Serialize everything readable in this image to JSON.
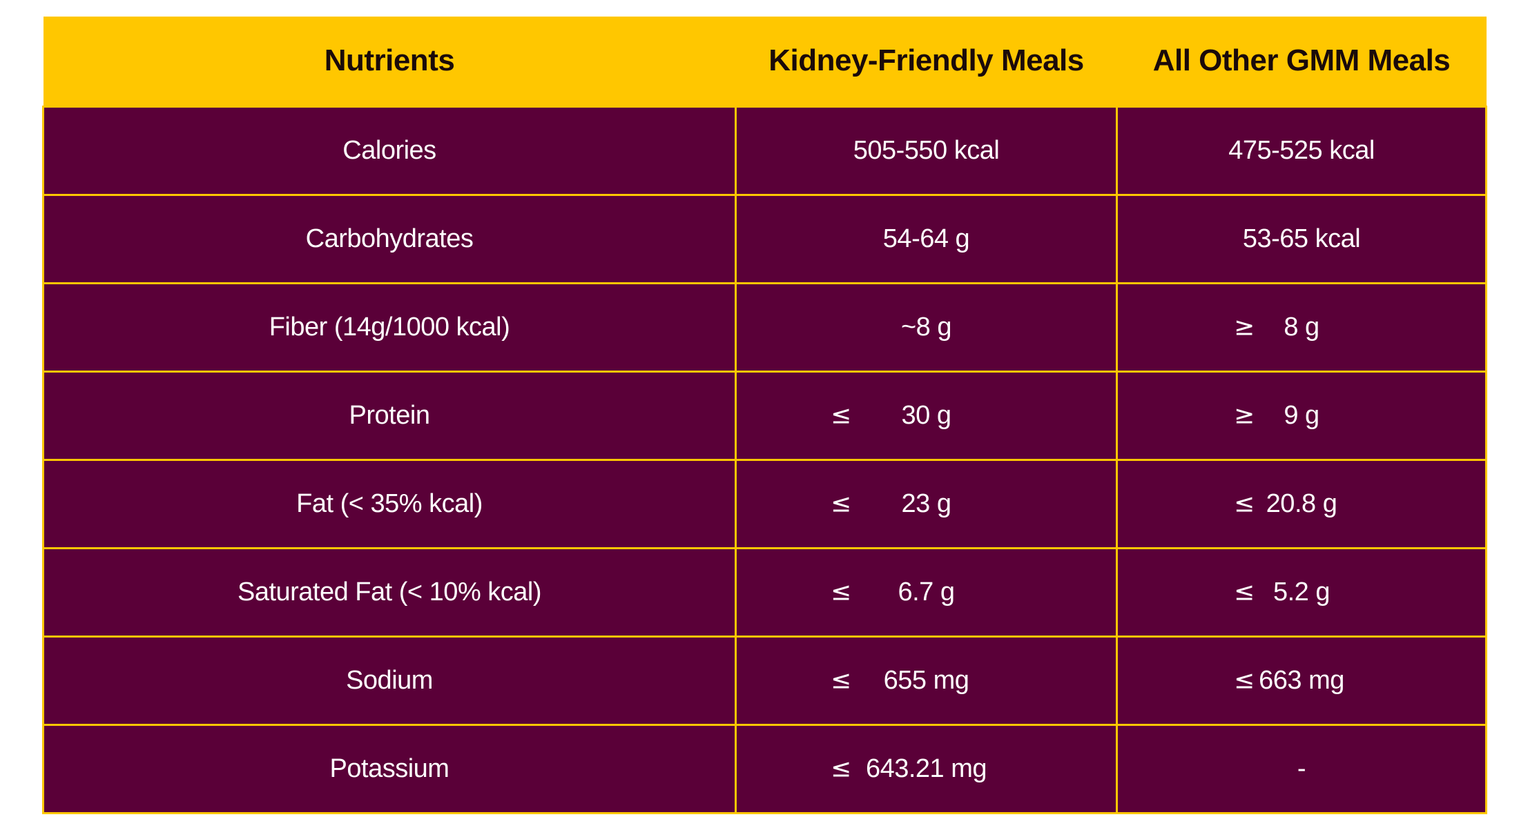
{
  "headers": {
    "col1": "Nutrients",
    "col2": "Kidney-Friendly Meals",
    "col3": "All Other GMM Meals"
  },
  "rows": [
    {
      "nutrient": "Calories",
      "kf_sym": "",
      "kf_val": "505-550 kcal",
      "other_sym": "",
      "other_val": "475-525 kcal"
    },
    {
      "nutrient": "Carbohydrates",
      "kf_sym": "",
      "kf_val": "54-64 g",
      "other_sym": "",
      "other_val": "53-65 kcal"
    },
    {
      "nutrient": "Fiber (14g/1000 kcal)",
      "kf_sym": "",
      "kf_val": "~8 g",
      "other_sym": "≥",
      "other_val": "8 g"
    },
    {
      "nutrient": "Protein",
      "kf_sym": "≤",
      "kf_val": "30 g",
      "other_sym": "≥",
      "other_val": "9 g"
    },
    {
      "nutrient": "Fat (< 35% kcal)",
      "kf_sym": "≤",
      "kf_val": "23 g",
      "other_sym": "≤",
      "other_val": "20.8 g"
    },
    {
      "nutrient": "Saturated Fat (< 10% kcal)",
      "kf_sym": "≤",
      "kf_val": "6.7 g",
      "other_sym": "≤",
      "other_val": "5.2 g"
    },
    {
      "nutrient": "Sodium",
      "kf_sym": "≤",
      "kf_val": "655 mg",
      "other_sym": "≤",
      "other_val": "663 mg"
    },
    {
      "nutrient": "Potassium",
      "kf_sym": "≤",
      "kf_val": "643.21 mg",
      "other_sym": "",
      "other_val": "-"
    }
  ],
  "colors": {
    "header_bg": "#ffc700",
    "body_bg": "#5a0038",
    "grid_line": "#ffc700",
    "body_text": "#ffffff"
  }
}
